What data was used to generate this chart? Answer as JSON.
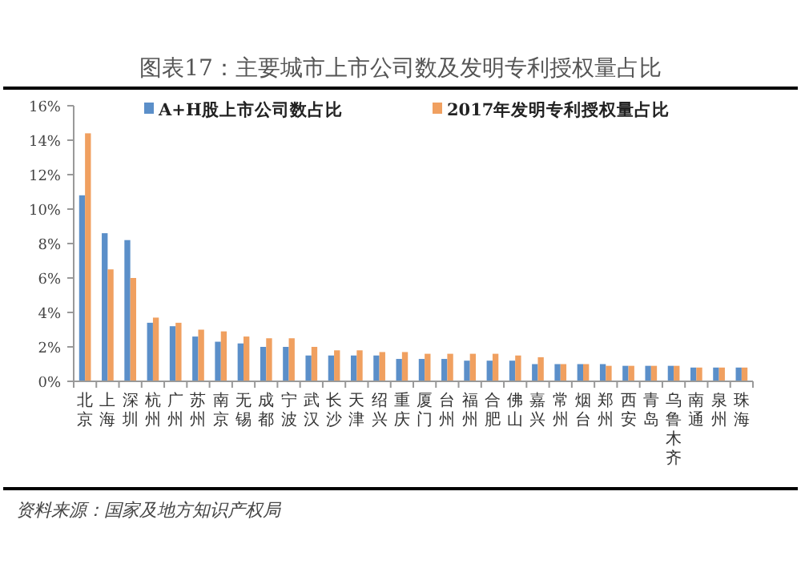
{
  "chart_data": {
    "type": "bar",
    "title": "图表17：主要城市上市公司数及发明专利授权量占比",
    "categories": [
      "北京",
      "上海",
      "深圳",
      "杭州",
      "广州",
      "苏州",
      "南京",
      "无锡",
      "成都",
      "宁波",
      "武汉",
      "长沙",
      "天津",
      "绍兴",
      "重庆",
      "厦门",
      "台州",
      "福州",
      "合肥",
      "佛山",
      "嘉兴",
      "常州",
      "烟台",
      "郑州",
      "西安",
      "青岛",
      "乌鲁木齐",
      "南通",
      "泉州",
      "珠海"
    ],
    "series": [
      {
        "name": "A+H股上市公司数占比",
        "color": "#5b8fc9",
        "values": [
          10.8,
          8.6,
          8.2,
          3.4,
          3.2,
          2.6,
          2.3,
          2.2,
          2.0,
          2.0,
          1.5,
          1.5,
          1.5,
          1.5,
          1.3,
          1.3,
          1.3,
          1.2,
          1.2,
          1.2,
          1.0,
          1.0,
          1.0,
          1.0,
          0.9,
          0.9,
          0.9,
          0.8,
          0.8,
          0.8
        ]
      },
      {
        "name": "2017年发明专利授权量占比",
        "color": "#f0a060",
        "values": [
          14.4,
          6.5,
          6.0,
          3.7,
          3.4,
          3.0,
          2.9,
          2.6,
          2.5,
          2.5,
          2.0,
          1.8,
          1.8,
          1.7,
          1.7,
          1.6,
          1.6,
          1.6,
          1.6,
          1.5,
          1.4,
          1.0,
          1.0,
          0.9,
          0.9,
          0.9,
          0.9,
          0.8,
          0.8,
          0.8
        ]
      }
    ],
    "ylim": [
      0,
      16
    ],
    "yticks": [
      {
        "value": 0,
        "label": "0%"
      },
      {
        "value": 2,
        "label": "2%"
      },
      {
        "value": 4,
        "label": "4%"
      },
      {
        "value": 6,
        "label": "6%"
      },
      {
        "value": 8,
        "label": "8%"
      },
      {
        "value": 10,
        "label": "10%"
      },
      {
        "value": 12,
        "label": "12%"
      },
      {
        "value": 14,
        "label": "14%"
      },
      {
        "value": 16,
        "label": "16%"
      }
    ],
    "legend": "top",
    "annotations": [
      "资料来源：国家及地方知识产权局"
    ]
  }
}
